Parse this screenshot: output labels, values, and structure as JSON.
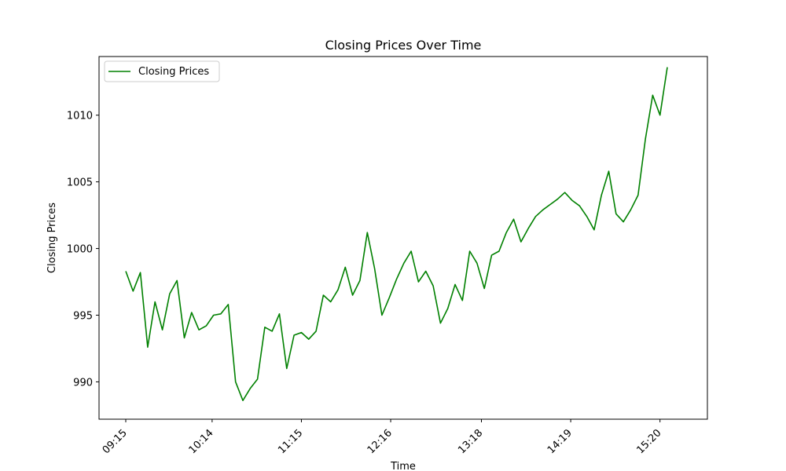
{
  "chart_data": {
    "type": "line",
    "title": "Closing Prices Over Time",
    "xlabel": "Time",
    "ylabel": "Closing Prices",
    "legend_position": "top-left",
    "grid": false,
    "line_color": "#008000",
    "x_ticks": [
      "09:15",
      "10:14",
      "11:15",
      "12:16",
      "13:18",
      "14:19",
      "15:20"
    ],
    "yticks": [
      990,
      995,
      1000,
      1005,
      1010
    ],
    "ylim": [
      987.2,
      1014.4
    ],
    "series": [
      {
        "name": "Closing Prices",
        "x": [
          "09:15",
          "09:20",
          "09:25",
          "09:30",
          "09:35",
          "09:40",
          "09:45",
          "09:50",
          "09:55",
          "10:00",
          "10:05",
          "10:10",
          "10:15",
          "10:20",
          "10:25",
          "10:30",
          "10:35",
          "10:40",
          "10:45",
          "10:50",
          "10:55",
          "11:00",
          "11:05",
          "11:10",
          "11:15",
          "11:20",
          "11:25",
          "11:30",
          "11:35",
          "11:40",
          "11:45",
          "11:50",
          "11:55",
          "12:00",
          "12:05",
          "12:10",
          "12:15",
          "12:20",
          "12:25",
          "12:30",
          "12:35",
          "12:40",
          "12:45",
          "12:50",
          "12:55",
          "13:00",
          "13:05",
          "13:10",
          "13:15",
          "13:20",
          "13:25",
          "13:30",
          "13:35",
          "13:40",
          "13:45",
          "13:50",
          "13:55",
          "14:00",
          "14:05",
          "14:10",
          "14:15",
          "14:20",
          "14:25",
          "14:30",
          "14:35",
          "14:40",
          "14:45",
          "14:50",
          "14:55",
          "15:00",
          "15:05",
          "15:10",
          "15:15",
          "15:20",
          "15:25"
        ],
        "values": [
          998.3,
          996.8,
          998.2,
          992.6,
          996.0,
          993.9,
          996.6,
          997.6,
          993.3,
          995.2,
          993.9,
          994.2,
          995.0,
          995.1,
          995.8,
          990.0,
          988.6,
          989.5,
          990.2,
          994.1,
          993.8,
          995.1,
          991.0,
          993.5,
          993.7,
          993.2,
          993.8,
          996.5,
          996.0,
          996.9,
          998.6,
          996.5,
          997.6,
          1001.2,
          998.5,
          995.0,
          996.3,
          997.7,
          998.9,
          999.8,
          997.5,
          998.3,
          997.2,
          994.4,
          995.5,
          997.3,
          996.1,
          999.8,
          998.9,
          997.0,
          999.5,
          999.8,
          1001.2,
          1002.2,
          1000.5,
          1001.5,
          1002.4,
          1002.9,
          1003.3,
          1003.7,
          1004.2,
          1003.6,
          1003.2,
          1002.4,
          1001.4,
          1004.0,
          1005.8,
          1002.6,
          1002.0,
          1002.9,
          1004.0,
          1008.2,
          1011.5,
          1010.0,
          1013.6
        ]
      }
    ]
  }
}
